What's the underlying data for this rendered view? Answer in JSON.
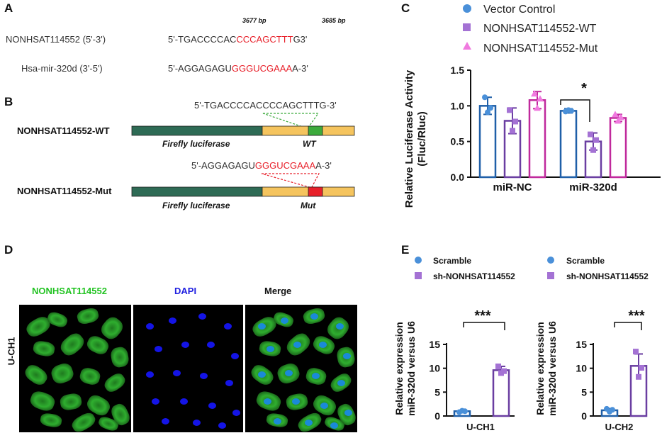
{
  "panel_a": {
    "letter": "A",
    "row1_label": "NONHSAT114552 (5'-3')",
    "row1_seq_prefix": "5'-TGACCCCAC",
    "row1_seq_red": "CCCAGCTTT",
    "row1_seq_suffix": "G3'",
    "row2_label": "Hsa-mir-320d (3'-5')",
    "row2_seq_prefix": "5'-AGGAGAGU",
    "row2_seq_red": "GGGUCGAAA",
    "row2_seq_suffix": "A-3'",
    "bp_left": "3677 bp",
    "bp_right": "3685 bp"
  },
  "panel_b": {
    "letter": "B",
    "wt_seq": "5'-TGACCCCACCCCAGCTTTG-3'",
    "mut_seq_prefix": "5'-AGGAGAGU",
    "mut_seq_red": "GGGUCGAAA",
    "mut_seq_suffix": "A-3'",
    "wt_label": "NONHSAT114552-WT",
    "mut_label": "NONHSAT114552-Mut",
    "firefly": "Firefly luciferase",
    "wt_tag": "WT",
    "mut_tag": "Mut",
    "colors": {
      "firefly": "#2e6b55",
      "utr": "#f5c45e",
      "wt_site": "#3caa3c",
      "mut_site": "#e8202a"
    }
  },
  "panel_c": {
    "letter": "C",
    "legend": [
      "Vector Control",
      "NONHSAT114552-WT",
      "NONHSAT114552-Mut"
    ],
    "ylabel_line1": "Relative Luciferase Activity",
    "ylabel_line2": "(Fluc/Rluc)",
    "significance": "*",
    "colors": {
      "vector": "#1f5fa8",
      "wt": "#6a3ea1",
      "mut": "#c0299c"
    }
  },
  "panel_d": {
    "letter": "D",
    "channel_green": "NONHSAT114552",
    "channel_blue": "DAPI",
    "channel_merge": "Merge",
    "row_label": "U-CH1"
  },
  "panel_e": {
    "letter": "E",
    "legend": [
      "Scramble",
      "sh-NONHSAT114552"
    ],
    "ylabel_line1": "Relative expression",
    "ylabel_line2": "miR-320d versus U6",
    "significance": "***",
    "colors": {
      "scramble": "#1f5fa8",
      "sh": "#6a3ea1"
    }
  },
  "chart_data": [
    {
      "type": "bar",
      "panel": "C",
      "categories": [
        "miR-NC",
        "miR-320d"
      ],
      "series": [
        {
          "name": "Vector Control",
          "values": [
            1.0,
            0.93
          ],
          "errors": [
            0.12,
            0.03
          ],
          "points": [
            [
              1.12,
              0.91,
              0.97
            ],
            [
              0.92,
              0.94,
              0.93
            ]
          ]
        },
        {
          "name": "NONHSAT114552-WT",
          "values": [
            0.79,
            0.5
          ],
          "errors": [
            0.18,
            0.12
          ],
          "points": [
            [
              0.94,
              0.65,
              0.78
            ],
            [
              0.6,
              0.38,
              0.52
            ]
          ]
        },
        {
          "name": "NONHSAT114552-Mut",
          "values": [
            1.08,
            0.83
          ],
          "errors": [
            0.12,
            0.05
          ],
          "points": [
            [
              1.17,
              0.97,
              1.1
            ],
            [
              0.88,
              0.79,
              0.84
            ]
          ]
        }
      ],
      "ylim": [
        0,
        1.5
      ],
      "yticks": [
        "0.0",
        "0.5",
        "1.0",
        "1.5"
      ]
    },
    {
      "type": "bar",
      "panel": "E-left",
      "categories": [
        "U-CH1"
      ],
      "series": [
        {
          "name": "Scramble",
          "values": [
            1.0
          ],
          "errors": [
            0.2
          ],
          "points": [
            [
              0.8,
              1.1,
              1.0
            ]
          ]
        },
        {
          "name": "sh-NONHSAT114552",
          "values": [
            9.6
          ],
          "errors": [
            0.8
          ],
          "points": [
            [
              10.4,
              9.0,
              9.4
            ]
          ]
        }
      ],
      "ylim": [
        0,
        15
      ],
      "yticks": [
        "0",
        "5",
        "10",
        "15"
      ]
    },
    {
      "type": "bar",
      "panel": "E-right",
      "categories": [
        "U-CH2"
      ],
      "series": [
        {
          "name": "Scramble",
          "values": [
            1.2
          ],
          "errors": [
            0.35
          ],
          "points": [
            [
              1.5,
              0.9,
              1.3
            ]
          ]
        },
        {
          "name": "sh-NONHSAT114552",
          "values": [
            10.5
          ],
          "errors": [
            2.5
          ],
          "points": [
            [
              13.5,
              8.2,
              10.1
            ]
          ]
        }
      ],
      "ylim": [
        0,
        15
      ],
      "yticks": [
        "0",
        "5",
        "10",
        "15"
      ]
    }
  ]
}
